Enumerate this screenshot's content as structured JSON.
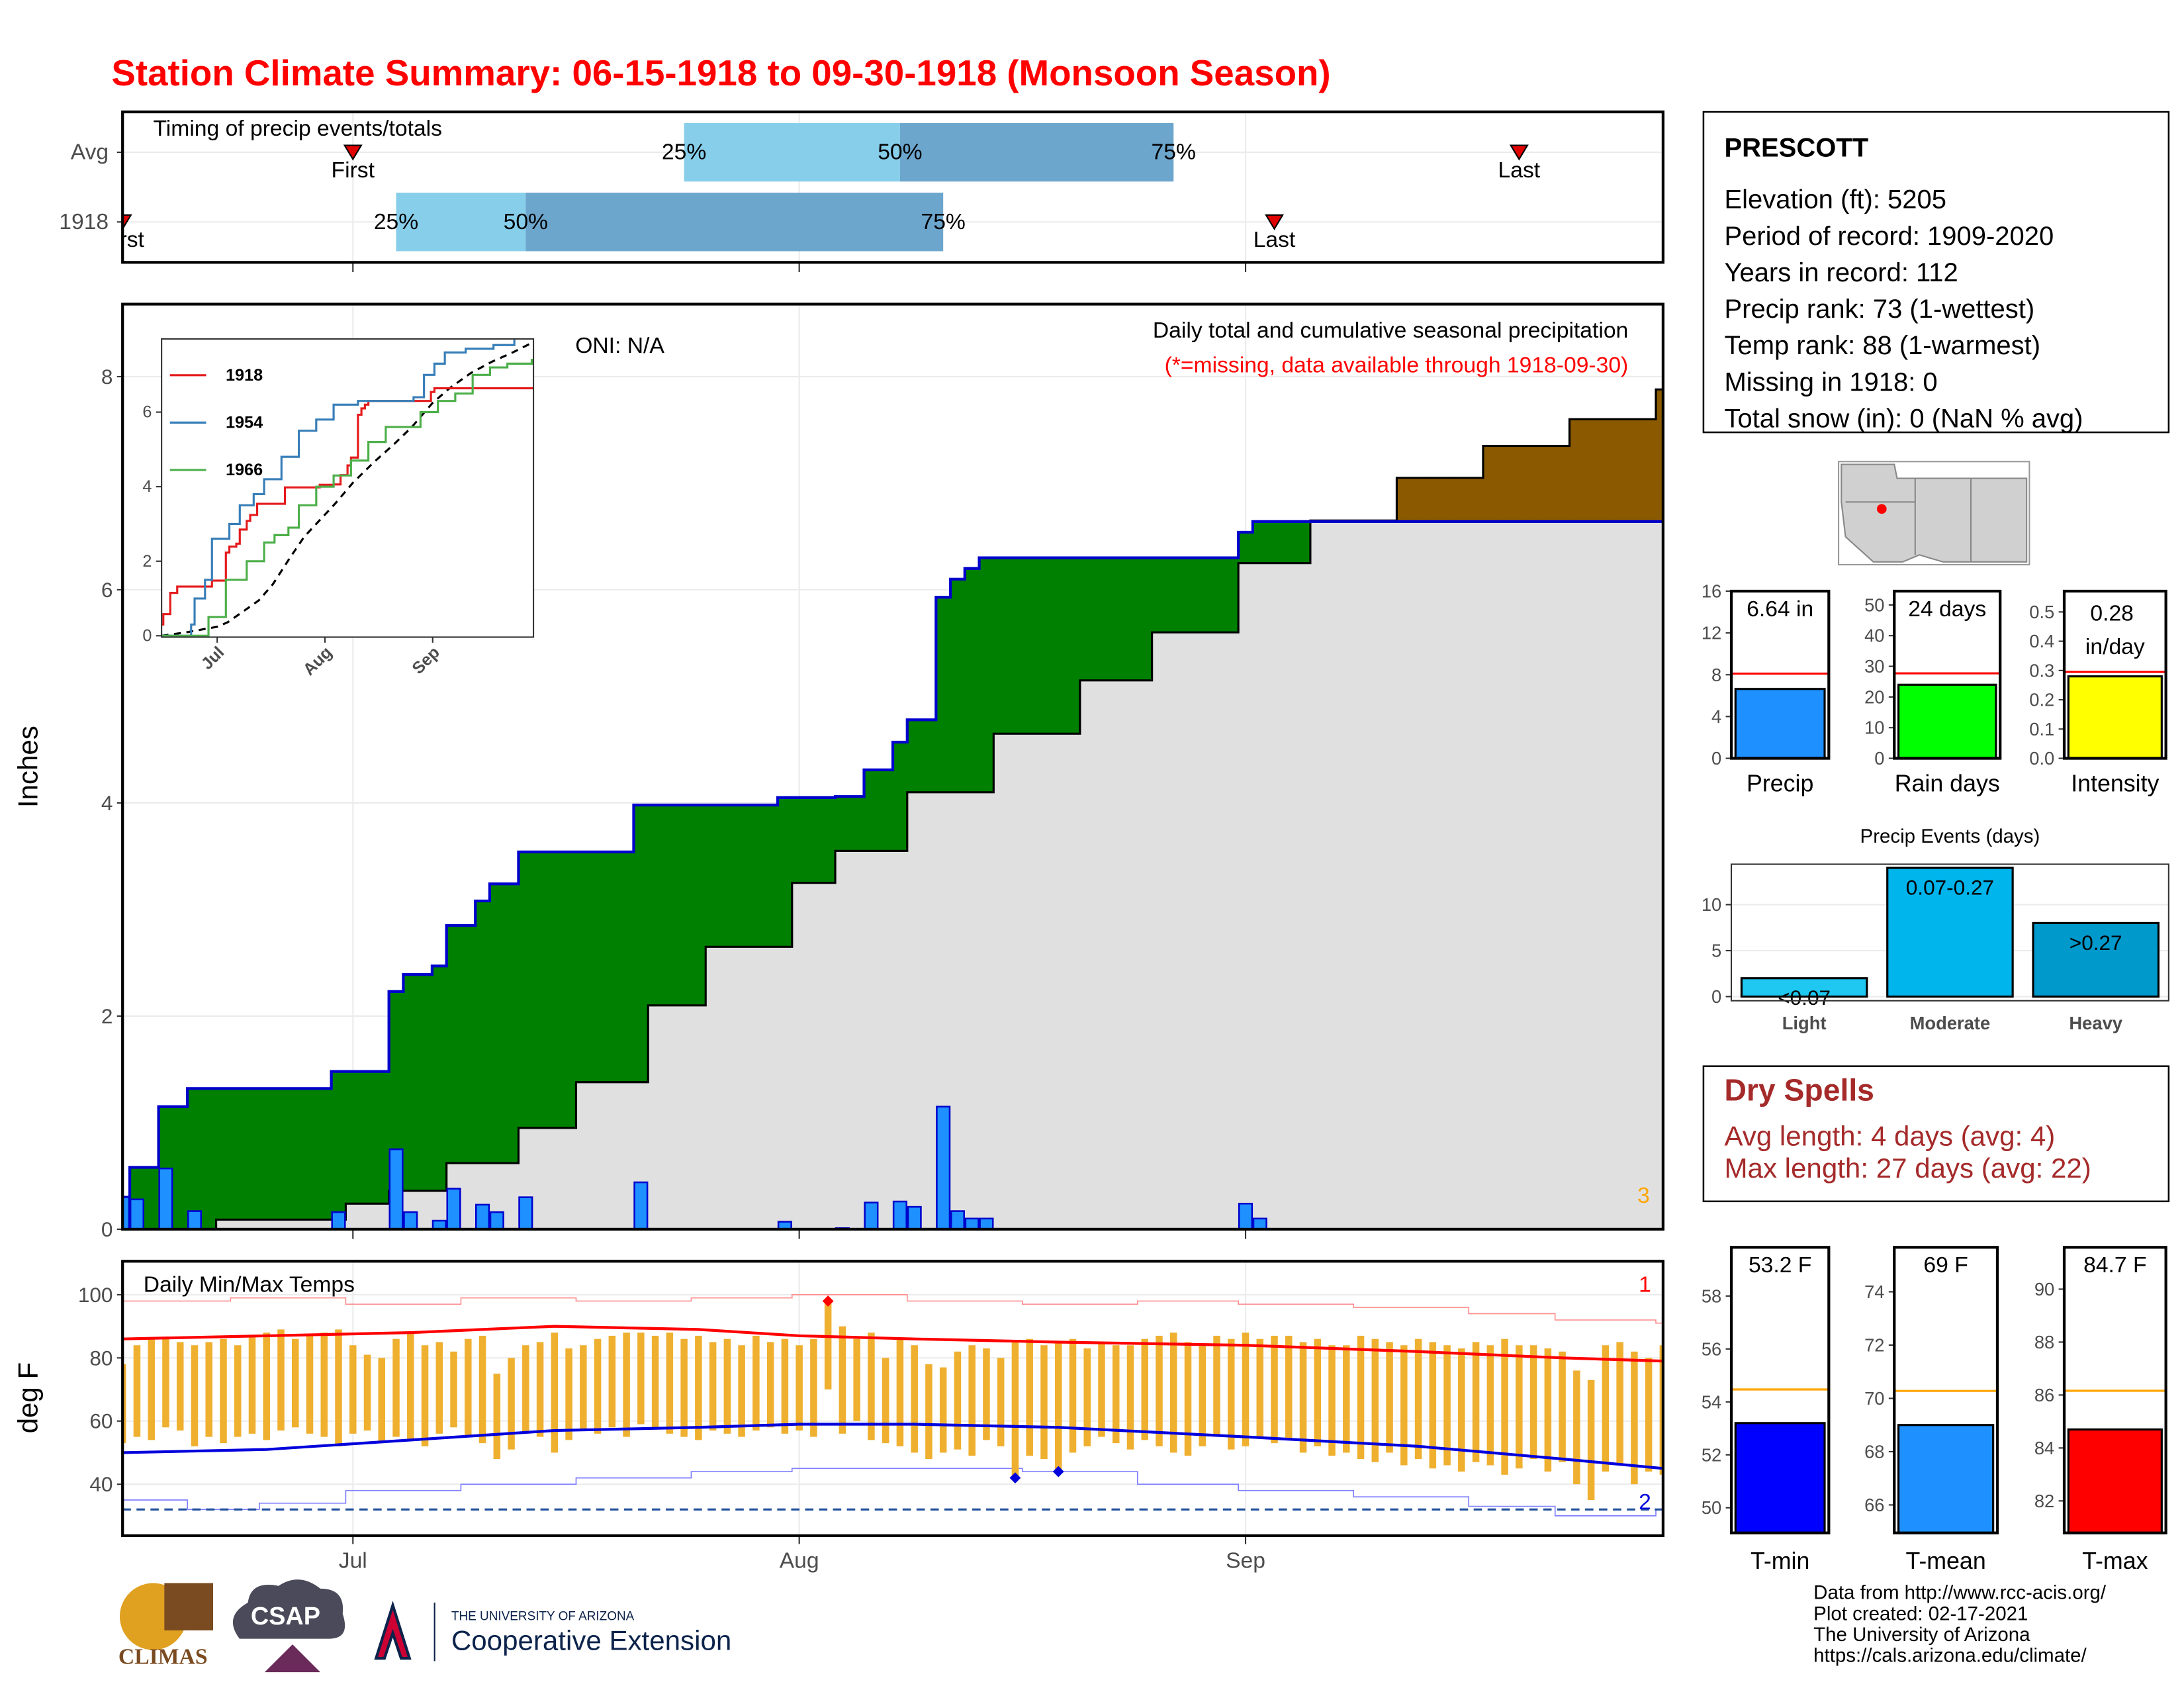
{
  "title": "Station Climate Summary: 06-15-1918 to 09-30-1918 (Monsoon Season)",
  "station": {
    "name": "PRESCOTT",
    "lines": [
      "Elevation (ft): 5205",
      "Period of record: 1909-2020",
      "Years in record: 112",
      "Precip rank: 73 (1-wettest)",
      "Temp rank: 88 (1-warmest)",
      "Missing in 1918: 0",
      "Total snow (in): 0 (NaN % avg)"
    ]
  },
  "dry_spells": {
    "title": "Dry Spells",
    "lines": [
      "Avg length: 4 days (avg: 4)",
      "Max length: 27 days (avg: 22)"
    ]
  },
  "footer": {
    "logos": [
      "CLIMAS",
      "CSAP",
      "THE UNIVERSITY OF ARIZONA",
      "Cooperative Extension"
    ],
    "credits": [
      "Data from http://www.rcc-acis.org/",
      "Plot created: 02-17-2021",
      "The University of Arizona",
      "https://cals.arizona.edu/climate/"
    ]
  },
  "chart_data": [
    {
      "type": "timing",
      "title": "Timing of precip events/totals",
      "categories": [
        "Avg",
        "1918"
      ],
      "first": [
        16,
        0
      ],
      "q25": [
        39,
        19
      ],
      "q50": [
        54,
        28
      ],
      "q75": [
        73,
        57
      ],
      "last": [
        97,
        80
      ],
      "marker_labels": [
        "First",
        "Last"
      ],
      "quartile_labels": [
        "25%",
        "50%",
        "75%"
      ],
      "colors": [
        "#87ceeb",
        "#6ca6cd"
      ],
      "marker_color": "#e00000",
      "xlim": [
        0,
        107
      ],
      "xticks": [
        16,
        47,
        78
      ],
      "grid": true
    },
    {
      "type": "cumulative_precip",
      "y_label": "Inches",
      "annotations": [
        "ONI: N/A",
        "Daily total and cumulative seasonal precipitation",
        "(*=missing, data available through 1918-09-30)",
        "3"
      ],
      "values": [
        0.3,
        0.28,
        0,
        0.57,
        0,
        0.17,
        0,
        0,
        0,
        0,
        0,
        0,
        0,
        0,
        0,
        0.16,
        0,
        0,
        0,
        0.75,
        0.16,
        0,
        0.08,
        0.38,
        0,
        0.23,
        0.16,
        0,
        0.3,
        0,
        0,
        0,
        0,
        0,
        0,
        0,
        0.44,
        0,
        0,
        0,
        0,
        0,
        0,
        0,
        0,
        0,
        0.07,
        0,
        0,
        0,
        0.01,
        0,
        0.25,
        0,
        0.26,
        0.21,
        0,
        1.15,
        0.17,
        0.1,
        0.1,
        0,
        0,
        0,
        0,
        0,
        0,
        0,
        0,
        0,
        0,
        0,
        0,
        0,
        0,
        0,
        0,
        0,
        0.24,
        0.1,
        0,
        0,
        0,
        0,
        0,
        0,
        0,
        0,
        0,
        0,
        0,
        0,
        0,
        0,
        0,
        0,
        0,
        0,
        0,
        0,
        0,
        0,
        0,
        0,
        0,
        0,
        0,
        0
      ],
      "average": {
        "x": [
          0,
          7,
          16,
          19,
          23,
          28,
          32,
          37,
          41,
          47,
          50,
          55,
          61,
          67,
          72,
          78,
          83,
          89,
          95,
          101,
          107
        ],
        "values": [
          0,
          0.09,
          0.24,
          0.36,
          0.62,
          0.95,
          1.38,
          2.1,
          2.65,
          3.25,
          3.55,
          4.1,
          4.65,
          5.15,
          5.6,
          6.25,
          6.65,
          7.05,
          7.35,
          7.6,
          7.88
        ]
      },
      "bar_color": "#1e90ff",
      "line_color": "#0000cd",
      "above_color": "#008000",
      "below_color": "#8b5a00",
      "base_color": "#e0e0e0",
      "average_color": "#000000",
      "xlim": [
        0,
        107
      ],
      "xticks": [
        16,
        47,
        78
      ],
      "ylim": [
        0,
        8.68
      ],
      "yticks": [
        0,
        2,
        4,
        6,
        8
      ],
      "grid": true
    },
    {
      "type": "inset_lines",
      "xlim": [
        0,
        107
      ],
      "xticks": [
        {
          "value": 16,
          "label": "Jul"
        },
        {
          "value": 47,
          "label": "Aug"
        },
        {
          "value": 78,
          "label": "Sep"
        }
      ],
      "ylim": [
        0,
        8
      ],
      "yticks": [
        0,
        2,
        4,
        6
      ],
      "series": [
        {
          "name": "1918",
          "color": "#e41a1c"
        },
        {
          "name": "1954",
          "color": "#377eb8",
          "x": [
            0,
            9,
            10,
            13,
            15,
            20,
            23,
            27,
            30,
            35,
            40,
            45,
            50,
            57,
            73,
            76,
            79,
            82,
            88,
            96,
            102
          ],
          "values": [
            0,
            0.3,
            1.0,
            1.5,
            2.6,
            3.0,
            3.5,
            3.8,
            4.2,
            4.8,
            5.5,
            5.8,
            6.2,
            6.3,
            6.4,
            7.0,
            7.3,
            7.6,
            7.7,
            7.8,
            8.0
          ]
        },
        {
          "name": "1966",
          "color": "#4daf4a",
          "x": [
            0,
            12,
            14,
            19,
            25,
            30,
            33,
            37,
            40,
            45,
            50,
            55,
            60,
            65,
            70,
            75,
            80,
            85,
            90,
            95,
            100,
            107
          ],
          "values": [
            0,
            0,
            0.5,
            1.5,
            2.0,
            2.5,
            2.7,
            2.9,
            3.5,
            4.0,
            4.3,
            4.7,
            5.2,
            5.6,
            5.6,
            6.0,
            6.3,
            6.5,
            7.0,
            7.2,
            7.3,
            7.4
          ]
        }
      ]
    },
    {
      "type": "temperature",
      "title": "Daily Min/Max Temps",
      "y_label": "deg F",
      "annotations": [
        "1",
        "2"
      ],
      "tmax": [
        78,
        84,
        86,
        86,
        85,
        84,
        85,
        86,
        84,
        87,
        88,
        89,
        86,
        87,
        88,
        89,
        84,
        81,
        80,
        86,
        88,
        84,
        85,
        82,
        86,
        87,
        75,
        80,
        84,
        85,
        88,
        83,
        84,
        86,
        87,
        88,
        88,
        87,
        88,
        86,
        87,
        85,
        86,
        84,
        87,
        85,
        86,
        84,
        86,
        98,
        90,
        86,
        88,
        80,
        86,
        84,
        78,
        77,
        82,
        84,
        83,
        80,
        85,
        86,
        84,
        85,
        86,
        83,
        85,
        84,
        84,
        86,
        87,
        88,
        85,
        84,
        87,
        86,
        88,
        86,
        87,
        87,
        85,
        86,
        84,
        84,
        87,
        86,
        85,
        84,
        86,
        85,
        84,
        83,
        85,
        84,
        86,
        84,
        84,
        83,
        82,
        76,
        73,
        84,
        85,
        82,
        80,
        84
      ],
      "tmin": [
        53,
        55,
        54,
        58,
        57,
        52,
        55,
        53,
        55,
        56,
        54,
        57,
        58,
        56,
        55,
        52,
        56,
        57,
        53,
        55,
        54,
        52,
        56,
        58,
        55,
        53,
        48,
        51,
        56,
        55,
        50,
        54,
        57,
        56,
        58,
        55,
        59,
        58,
        56,
        55,
        54,
        57,
        56,
        55,
        57,
        58,
        56,
        57,
        55,
        70,
        56,
        60,
        54,
        53,
        52,
        50,
        48,
        50,
        51,
        49,
        54,
        52,
        42,
        49,
        48,
        44,
        50,
        52,
        55,
        53,
        51,
        54,
        52,
        50,
        49,
        52,
        55,
        51,
        52,
        55,
        53,
        54,
        50,
        52,
        49,
        50,
        48,
        47,
        50,
        46,
        48,
        45,
        46,
        44,
        47,
        46,
        43,
        45,
        48,
        44,
        47,
        40,
        35,
        44,
        46,
        40,
        44,
        43
      ],
      "record_high_days": [
        49
      ],
      "record_low_days": [
        62,
        65
      ],
      "avg_max": {
        "x": [
          0,
          10,
          20,
          30,
          40,
          47,
          55,
          65,
          78,
          90,
          100,
          107
        ],
        "values": [
          86,
          87,
          88,
          90,
          89,
          87,
          86,
          85,
          84,
          82,
          80,
          79
        ]
      },
      "avg_min": {
        "x": [
          0,
          10,
          20,
          30,
          40,
          47,
          55,
          65,
          78,
          90,
          100,
          107
        ],
        "values": [
          50,
          51,
          54,
          57,
          58,
          59,
          59,
          58,
          55,
          52,
          48,
          45
        ]
      },
      "record_max": {
        "x": [
          0,
          8,
          16,
          24,
          32,
          40,
          47,
          55,
          63,
          71,
          78,
          86,
          94,
          100,
          107
        ],
        "values": [
          98,
          99,
          97,
          99,
          98,
          99,
          100,
          98,
          97,
          98,
          97,
          96,
          94,
          92,
          91
        ]
      },
      "record_min": {
        "x": [
          0,
          5,
          10,
          16,
          24,
          32,
          40,
          47,
          55,
          63,
          71,
          78,
          86,
          94,
          100,
          107
        ],
        "values": [
          35,
          32,
          34,
          38,
          40,
          42,
          44,
          45,
          45,
          44,
          40,
          38,
          36,
          33,
          30,
          32
        ]
      },
      "threshold": 32,
      "colors": {
        "bar": "#efb030",
        "avg_max": "#ff0000",
        "avg_min": "#0000dd",
        "record_max": "#ff9090",
        "record_min": "#8080ff",
        "threshold": "#1f4e9a"
      },
      "xlim": [
        0,
        107
      ],
      "xticks": [
        {
          "value": 16,
          "label": "Jul"
        },
        {
          "value": 47,
          "label": "Aug"
        },
        {
          "value": 78,
          "label": "Sep"
        }
      ],
      "ylim": [
        23.7,
        110.6
      ],
      "yticks": [
        40,
        60,
        80,
        100
      ],
      "grid": true
    },
    {
      "type": "gauge",
      "categories": [
        "Precip"
      ],
      "values": [
        6.64
      ],
      "value_labels": [
        "6.64 in"
      ],
      "average": 8.1,
      "color": "#1e90ff",
      "average_color": "#ff0000",
      "ylim": [
        0,
        16
      ],
      "yticks": [
        0,
        4,
        8,
        12,
        16
      ]
    },
    {
      "type": "gauge",
      "categories": [
        "Rain days"
      ],
      "values": [
        24
      ],
      "value_labels": [
        "24 days"
      ],
      "average": 27.7,
      "color": "#00ff00",
      "average_color": "#ff0000",
      "ylim": [
        0,
        54.5
      ],
      "yticks": [
        0,
        10,
        20,
        30,
        40,
        50
      ]
    },
    {
      "type": "gauge",
      "categories": [
        "Intensity"
      ],
      "values": [
        0.28
      ],
      "value_labels": [
        "0.28 in/day"
      ],
      "average": 0.295,
      "color": "#ffff00",
      "average_color": "#ff0000",
      "ylim": [
        0,
        0.571
      ],
      "yticks": [
        {
          "value": 0,
          "label": "0.0"
        },
        0.1,
        0.2,
        0.3,
        0.4,
        0.5
      ]
    },
    {
      "type": "bar",
      "title": "Precip Events (days)",
      "categories": [
        "Light",
        "Moderate",
        "Heavy"
      ],
      "values": [
        2,
        14,
        8
      ],
      "bin_labels": [
        "<0.07",
        "0.07-0.27",
        ">0.27"
      ],
      "colors": [
        "#1ec8f0",
        "#00b4ec",
        "#0099cc"
      ],
      "ylim": [
        -0.45,
        14.4
      ],
      "yticks": [
        0,
        5,
        10
      ],
      "grid": true
    },
    {
      "type": "gauge",
      "categories": [
        "T-min"
      ],
      "values": [
        53.2
      ],
      "value_labels": [
        "53.2 F"
      ],
      "average": 54.47,
      "color": "#0000ff",
      "average_color": "#ffa500",
      "ylim": [
        49.05,
        59.84
      ],
      "yticks": [
        50,
        52,
        54,
        56,
        58
      ]
    },
    {
      "type": "gauge",
      "categories": [
        "T-mean"
      ],
      "values": [
        69
      ],
      "value_labels": [
        "69 F"
      ],
      "average": 70.28,
      "color": "#1e90ff",
      "average_color": "#ffa500",
      "ylim": [
        64.95,
        75.67
      ],
      "yticks": [
        66,
        68,
        70,
        72,
        74
      ]
    },
    {
      "type": "gauge",
      "categories": [
        "T-max"
      ],
      "values": [
        84.7
      ],
      "value_labels": [
        "84.7 F"
      ],
      "average": 86.16,
      "color": "#ff0000",
      "average_color": "#ffa500",
      "ylim": [
        80.79,
        91.58
      ],
      "yticks": [
        82,
        84,
        86,
        88,
        90
      ]
    }
  ]
}
